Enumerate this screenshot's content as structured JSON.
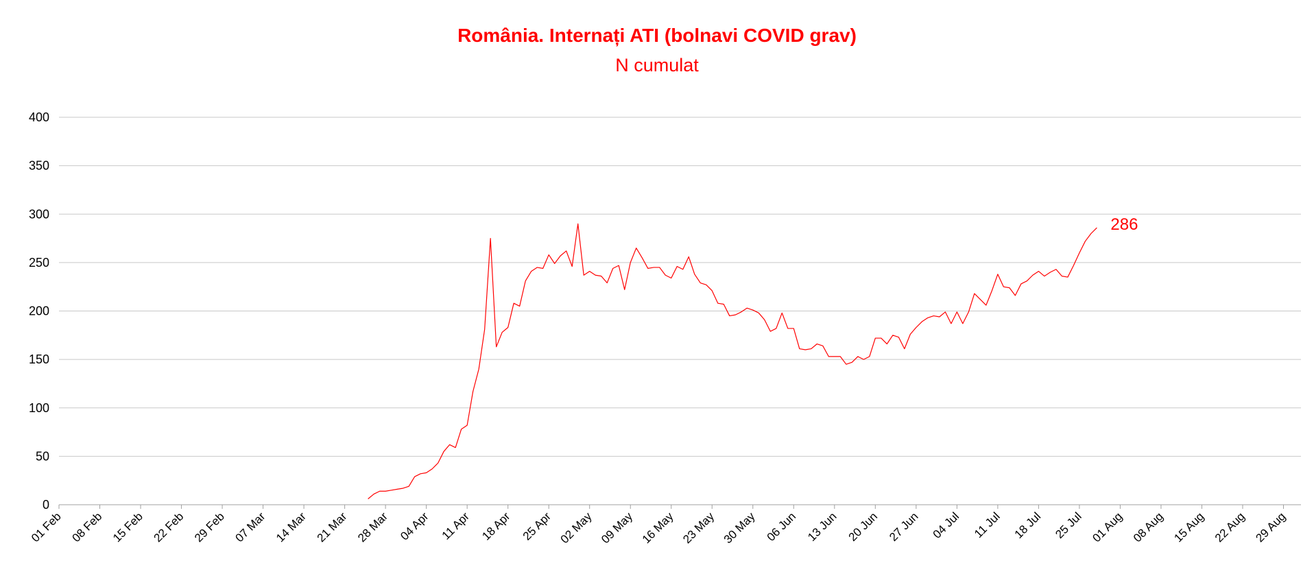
{
  "chart_data": {
    "type": "line",
    "title": "România. Internați ATI (bolnavi COVID grav)",
    "subtitle": "N cumulat",
    "xlabel": "",
    "ylabel": "",
    "ylim": [
      0,
      400
    ],
    "yticks": [
      0,
      50,
      100,
      150,
      200,
      250,
      300,
      350,
      400
    ],
    "xlim": [
      "2020-02-01",
      "2020-09-01"
    ],
    "x_tick_labels": [
      "01 Feb",
      "08 Feb",
      "15 Feb",
      "22 Feb",
      "29 Feb",
      "07 Mar",
      "14 Mar",
      "21 Mar",
      "28 Mar",
      "04 Apr",
      "11 Apr",
      "18 Apr",
      "25 Apr",
      "02 May",
      "09 May",
      "16 May",
      "23 May",
      "30 May",
      "06 Jun",
      "13 Jun",
      "20 Jun",
      "27 Jun",
      "04 Jul",
      "11 Jul",
      "18 Jul",
      "25 Jul",
      "01 Aug",
      "08 Aug",
      "15 Aug",
      "22 Aug",
      "29 Aug"
    ],
    "grid": "horizontal",
    "line_color": "#ff0000",
    "end_label": "286",
    "series": [
      {
        "start_date": "2020-03-25",
        "values": [
          6,
          11,
          14,
          14,
          15,
          16,
          17,
          19,
          29,
          32,
          33,
          37,
          43,
          55,
          62,
          59,
          78,
          82,
          117,
          140,
          181,
          275,
          163,
          178,
          183,
          208,
          205,
          231,
          241,
          245,
          244,
          258,
          249,
          257,
          262,
          246,
          290,
          237,
          241,
          237,
          236,
          229,
          244,
          247,
          222,
          250,
          265,
          255,
          244,
          245,
          245,
          237,
          234,
          246,
          243,
          256,
          238,
          229,
          227,
          221,
          208,
          207,
          195,
          196,
          199,
          203,
          201,
          198,
          191,
          179,
          182,
          198,
          182,
          182,
          161,
          160,
          161,
          166,
          164,
          153,
          153,
          153,
          145,
          147,
          153,
          150,
          153,
          172,
          172,
          166,
          175,
          173,
          161,
          176,
          183,
          189,
          193,
          195,
          194,
          199,
          187,
          199,
          187,
          199,
          218,
          212,
          206,
          221,
          238,
          225,
          224,
          216,
          228,
          231,
          237,
          241,
          236,
          240,
          243,
          236,
          235,
          247,
          260,
          272,
          280,
          286
        ]
      }
    ]
  }
}
